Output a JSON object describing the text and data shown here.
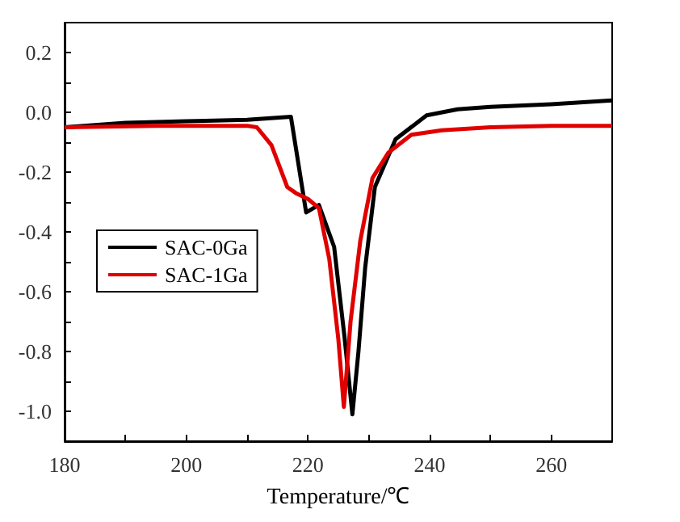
{
  "chart_data": {
    "type": "line",
    "xlabel": "Temperature/℃",
    "xlim": [
      180,
      270
    ],
    "xticks": [
      180,
      200,
      220,
      240,
      260
    ],
    "ylim": [
      -1.1,
      0.3
    ],
    "yticks": [
      {
        "value": 0.2,
        "label": "0.2"
      },
      {
        "value": 0,
        "label": "0.0"
      },
      {
        "value": -0.2,
        "label": "-0.2"
      },
      {
        "value": -0.4,
        "label": "-0.4"
      },
      {
        "value": -0.6,
        "label": "-0.6"
      },
      {
        "value": -0.8,
        "label": "-0.8"
      },
      {
        "value": -1.0,
        "label": "-1.0"
      }
    ],
    "grid": false,
    "legend": "left",
    "line_style": "solid",
    "series": [
      {
        "name": "SAC-0Ga",
        "color": "#000000",
        "x": [
          180,
          190,
          200,
          210,
          217.2,
          219.7,
          221.8,
          224.3,
          226,
          227.3,
          228.3,
          229.4,
          231,
          234.4,
          239.5,
          244.6,
          250,
          260,
          270
        ],
        "values": [
          -0.05,
          -0.035,
          -0.03,
          -0.025,
          -0.015,
          -0.335,
          -0.31,
          -0.45,
          -0.75,
          -1.01,
          -0.8,
          -0.52,
          -0.25,
          -0.09,
          -0.01,
          0.01,
          0.018,
          0.027,
          0.04
        ]
      },
      {
        "name": "SAC-1Ga",
        "color": "#e00000",
        "x": [
          180,
          195,
          210,
          211.6,
          214,
          216.6,
          218,
          220,
          221.8,
          223.5,
          225,
          225.9,
          227,
          228.6,
          230.6,
          233.2,
          237,
          242,
          250,
          260,
          270
        ],
        "values": [
          -0.05,
          -0.045,
          -0.045,
          -0.05,
          -0.11,
          -0.25,
          -0.27,
          -0.29,
          -0.32,
          -0.49,
          -0.76,
          -0.985,
          -0.7,
          -0.43,
          -0.22,
          -0.135,
          -0.075,
          -0.06,
          -0.05,
          -0.045,
          -0.045
        ]
      }
    ]
  }
}
